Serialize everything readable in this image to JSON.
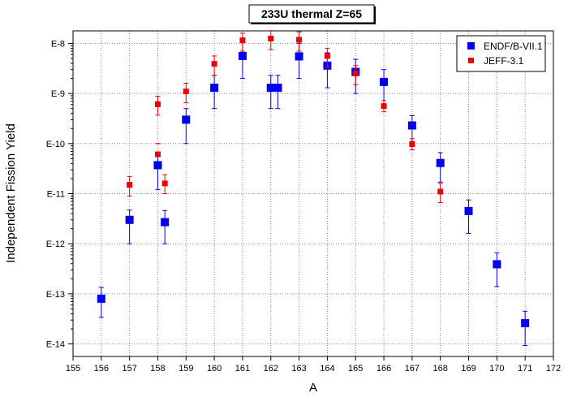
{
  "chart_data": {
    "type": "scatter",
    "title": "233U thermal Z=65",
    "xlabel": "A",
    "ylabel": "Independent Fission Yield",
    "xlim": [
      155,
      172
    ],
    "ylim_log10": [
      -14.25,
      -7.75
    ],
    "y_scale": "log",
    "grid": true,
    "legend_position": "top-right",
    "x_ticks": [
      155,
      156,
      157,
      158,
      159,
      160,
      161,
      162,
      163,
      164,
      165,
      166,
      167,
      168,
      169,
      170,
      171,
      172
    ],
    "x_tick_labels": [
      "155",
      "156",
      "157",
      "158",
      "159",
      "160",
      "161",
      "162",
      "163",
      "164",
      "165",
      "166",
      "167",
      "168",
      "169",
      "170",
      "171",
      "172"
    ],
    "y_ticks_log10": [
      -14,
      -13,
      -12,
      -11,
      -10,
      -9,
      -8
    ],
    "y_tick_labels": [
      "E-14",
      "E-13",
      "E-12",
      "E-11",
      "E-10",
      "E-9",
      "E-8"
    ],
    "colors": {
      "endf": "#0000ee",
      "jeff": "#ee0000"
    },
    "series": [
      {
        "name": "ENDF/B-VII.1",
        "marker": "square-large",
        "points": [
          {
            "a": 156,
            "y": 8e-14,
            "lo": 3.4e-14,
            "hi": 1.35e-13
          },
          {
            "a": 157,
            "y": 3e-12,
            "lo": 1e-12,
            "hi": 4.7e-12
          },
          {
            "a": 158,
            "y": 3.7e-11,
            "lo": 1.2e-11,
            "hi": 6.5e-11
          },
          {
            "a": 158.25,
            "y": 2.7e-12,
            "lo": 1e-12,
            "hi": 4.6e-12
          },
          {
            "a": 159,
            "y": 3e-10,
            "lo": 1e-10,
            "hi": 5e-10
          },
          {
            "a": 160,
            "y": 1.3e-09,
            "lo": 5e-10,
            "hi": 2.3e-09
          },
          {
            "a": 161,
            "y": 5.6e-09,
            "lo": 2e-09,
            "hi": 1.05e-08
          },
          {
            "a": 162,
            "y": 1.3e-09,
            "lo": 5e-10,
            "hi": 2.3e-09
          },
          {
            "a": 162.25,
            "y": 1.3e-09,
            "lo": 5e-10,
            "hi": 2.3e-09
          },
          {
            "a": 163,
            "y": 5.5e-09,
            "lo": 2e-09,
            "hi": 1e-08
          },
          {
            "a": 164,
            "y": 3.6e-09,
            "lo": 1.3e-09,
            "hi": 6.5e-09
          },
          {
            "a": 165,
            "y": 2.7e-09,
            "lo": 1e-09,
            "hi": 4.8e-09
          },
          {
            "a": 166,
            "y": 1.7e-09,
            "lo": 6e-10,
            "hi": 3e-09
          },
          {
            "a": 167,
            "y": 2.3e-10,
            "lo": 1.1e-10,
            "hi": 3.6e-10
          },
          {
            "a": 168,
            "y": 4.1e-11,
            "lo": 1.7e-11,
            "hi": 6.6e-11
          },
          {
            "a": 169,
            "y": 4.5e-12,
            "lo": 1.6e-12,
            "hi": 7.5e-12
          },
          {
            "a": 170,
            "y": 3.9e-13,
            "lo": 1.4e-13,
            "hi": 6.6e-13
          },
          {
            "a": 171,
            "y": 2.6e-14,
            "lo": 9.3e-15,
            "hi": 4.5e-14
          }
        ]
      },
      {
        "name": "JEFF-3.1",
        "marker": "square-small",
        "points": [
          {
            "a": 157,
            "y": 1.5e-11,
            "lo": 9e-12,
            "hi": 2.2e-11
          },
          {
            "a": 158,
            "y": 6.1e-11,
            "lo": 1e-10,
            "hi": 1e-10
          },
          {
            "a": 158,
            "y": 6.1e-10,
            "lo": 3.7e-10,
            "hi": 8.8e-10
          },
          {
            "a": 158.25,
            "y": 1.6e-11,
            "lo": 1e-11,
            "hi": 2.4e-11
          },
          {
            "a": 159,
            "y": 1.1e-09,
            "lo": 6.5e-10,
            "hi": 1.6e-09
          },
          {
            "a": 160,
            "y": 3.9e-09,
            "lo": 2.3e-09,
            "hi": 5.6e-09
          },
          {
            "a": 161,
            "y": 1.15e-08,
            "lo": 7e-09,
            "hi": 1.6e-08
          },
          {
            "a": 162,
            "y": 1.25e-08,
            "lo": 7.5e-09,
            "hi": 1.8e-08
          },
          {
            "a": 163,
            "y": 1.18e-08,
            "lo": 7e-09,
            "hi": 1.7e-08
          },
          {
            "a": 164,
            "y": 5.6e-09,
            "lo": 3.4e-09,
            "hi": 8e-09
          },
          {
            "a": 165,
            "y": 2.5e-09,
            "lo": 1.5e-09,
            "hi": 3.6e-09
          },
          {
            "a": 166,
            "y": 5.6e-10,
            "lo": 4.3e-10,
            "hi": 7.2e-10
          },
          {
            "a": 167,
            "y": 9.7e-11,
            "lo": 7.5e-11,
            "hi": 1.25e-10
          },
          {
            "a": 168,
            "y": 1.1e-11,
            "lo": 6.6e-12,
            "hi": 1.6e-11
          }
        ]
      }
    ]
  }
}
